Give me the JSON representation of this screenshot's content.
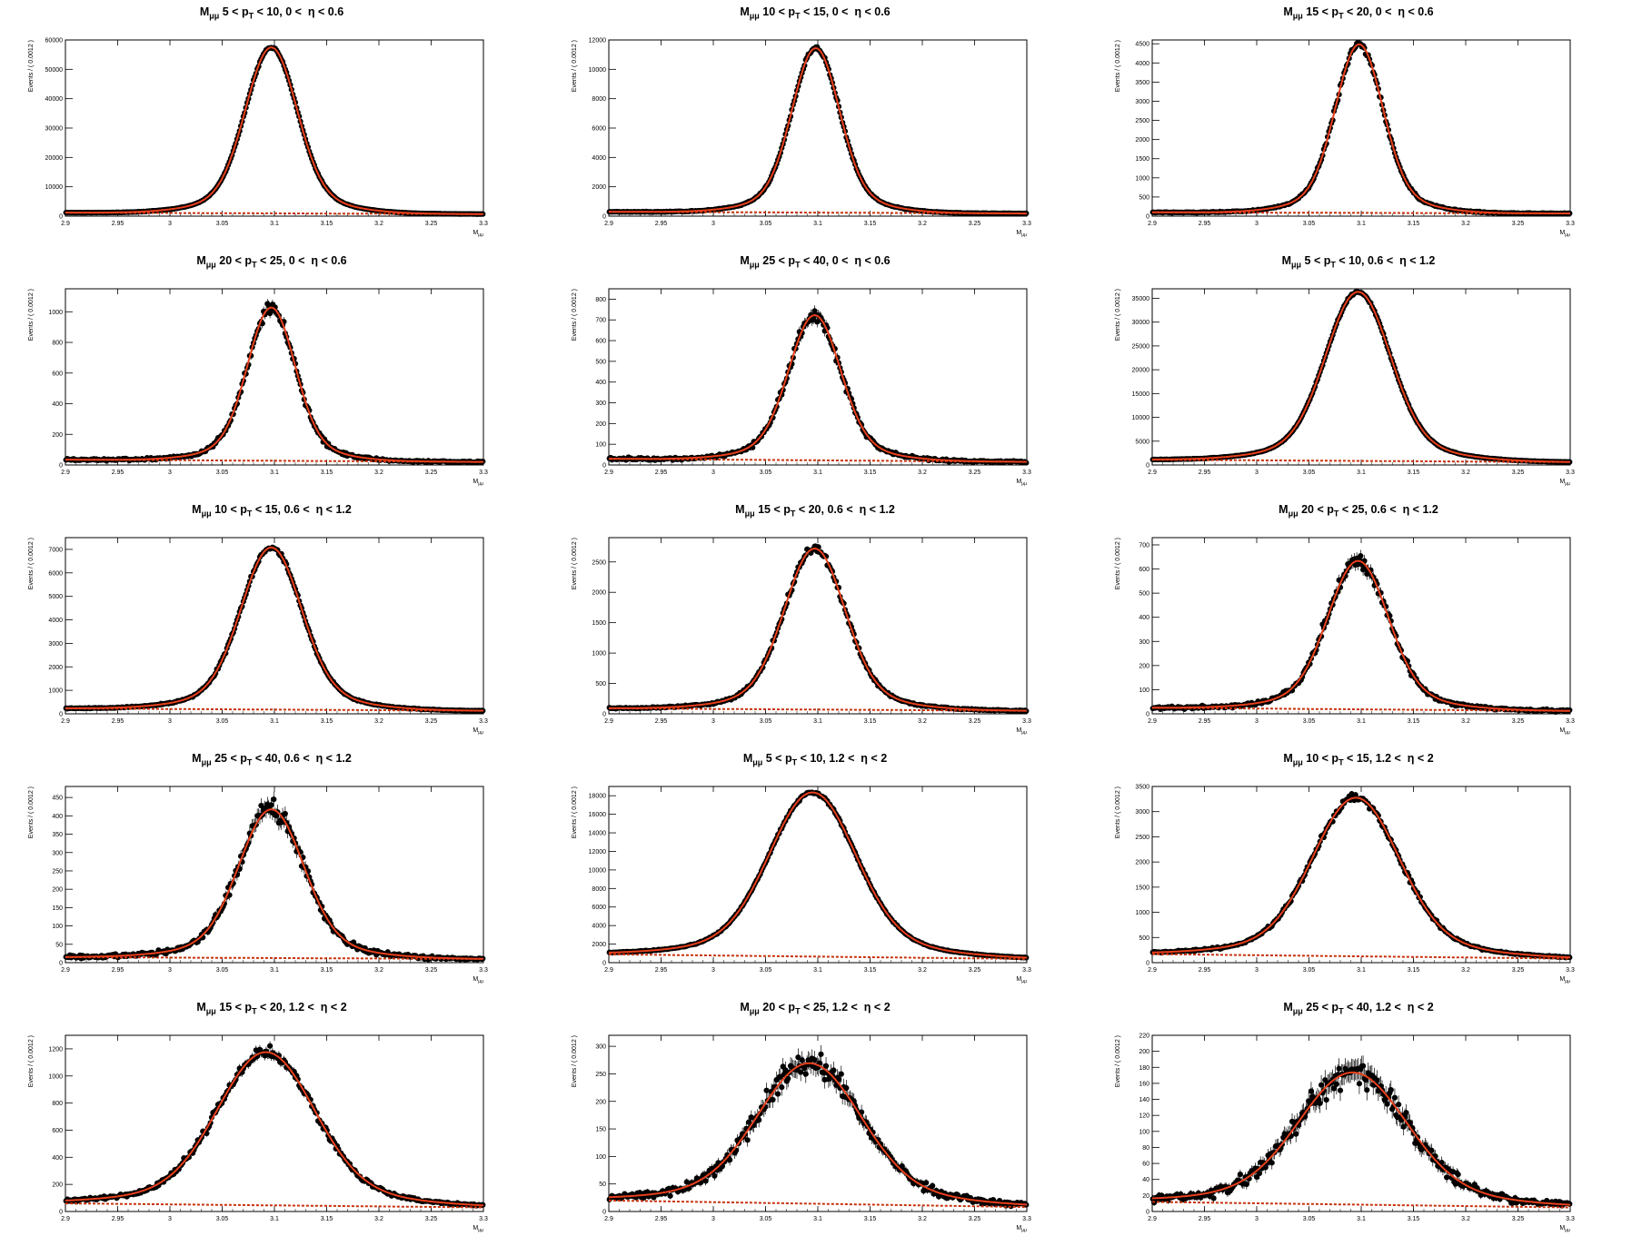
{
  "figure": {
    "colors": {
      "fit": "#e8401c",
      "background_fit": "#c8300c",
      "points": "#000000",
      "frame": "#000000"
    },
    "fit_line_style": "solid",
    "background_line_style": "dashed"
  },
  "chart_data": [
    {
      "type": "scatter",
      "title_parts": [
        "5",
        "10",
        "0",
        "0.6"
      ],
      "ylabel": "Events / ( 0.0012 )",
      "xlabel": "M",
      "xlim": [
        2.9,
        3.3
      ],
      "ylim": [
        0,
        60000
      ],
      "xticks": [
        "2.9",
        "2.95",
        "3",
        "3.05",
        "3.1",
        "3.15",
        "3.2",
        "3.25",
        "3.3"
      ],
      "yticks": [
        "0",
        "10000",
        "20000",
        "30000",
        "40000",
        "50000",
        "60000"
      ],
      "fit": {
        "peak": 56500,
        "mean": 3.097,
        "sigma": 0.024,
        "background_start": 1200,
        "background_end": 700
      },
      "series": [
        {
          "name": "data",
          "markers": "filled-circle"
        },
        {
          "name": "fit",
          "style": "solid"
        },
        {
          "name": "background",
          "style": "dashed"
        }
      ]
    },
    {
      "type": "scatter",
      "title_parts": [
        "10",
        "15",
        "0",
        "0.6"
      ],
      "ylabel": "Events / ( 0.0012 )",
      "xlabel": "M",
      "xlim": [
        2.9,
        3.3
      ],
      "ylim": [
        0,
        12000
      ],
      "xticks": [
        "2.9",
        "2.95",
        "3",
        "3.05",
        "3.1",
        "3.15",
        "3.2",
        "3.25",
        "3.3"
      ],
      "yticks": [
        "0",
        "2000",
        "4000",
        "6000",
        "8000",
        "10000",
        "12000"
      ],
      "fit": {
        "peak": 11200,
        "mean": 3.098,
        "sigma": 0.022,
        "background_start": 300,
        "background_end": 180
      },
      "series": [
        {
          "name": "data",
          "markers": "filled-circle"
        },
        {
          "name": "fit",
          "style": "solid"
        },
        {
          "name": "background",
          "style": "dashed"
        }
      ]
    },
    {
      "type": "scatter",
      "title_parts": [
        "15",
        "20",
        "0",
        "0.6"
      ],
      "ylabel": "Events / ( 0.0012 )",
      "xlabel": "M",
      "xlim": [
        2.9,
        3.3
      ],
      "ylim": [
        0,
        4600
      ],
      "xticks": [
        "2.9",
        "2.95",
        "3",
        "3.05",
        "3.1",
        "3.15",
        "3.2",
        "3.25",
        "3.3"
      ],
      "yticks": [
        "0",
        "500",
        "1000",
        "1500",
        "2000",
        "2500",
        "3000",
        "3500",
        "4000",
        "4500"
      ],
      "fit": {
        "peak": 4400,
        "mean": 3.098,
        "sigma": 0.022,
        "background_start": 100,
        "background_end": 70
      },
      "series": [
        {
          "name": "data",
          "markers": "filled-circle"
        },
        {
          "name": "fit",
          "style": "solid"
        },
        {
          "name": "background",
          "style": "dashed"
        }
      ]
    },
    {
      "type": "scatter",
      "title_parts": [
        "20",
        "25",
        "0",
        "0.6"
      ],
      "ylabel": "Events / ( 0.0012 )",
      "xlabel": "M",
      "xlim": [
        2.9,
        3.3
      ],
      "ylim": [
        0,
        1150
      ],
      "xticks": [
        "2.9",
        "2.95",
        "3",
        "3.05",
        "3.1",
        "3.15",
        "3.2",
        "3.25",
        "3.3"
      ],
      "yticks": [
        "0",
        "200",
        "400",
        "600",
        "800",
        "1000"
      ],
      "fit": {
        "peak": 1000,
        "mean": 3.097,
        "sigma": 0.022,
        "background_start": 35,
        "background_end": 20
      },
      "series": [
        {
          "name": "data",
          "markers": "filled-circle"
        },
        {
          "name": "fit",
          "style": "solid"
        },
        {
          "name": "background",
          "style": "dashed"
        }
      ]
    },
    {
      "type": "scatter",
      "title_parts": [
        "25",
        "40",
        "0",
        "0.6"
      ],
      "ylabel": "Events / ( 0.0012 )",
      "xlabel": "M",
      "xlim": [
        2.9,
        3.3
      ],
      "ylim": [
        0,
        850
      ],
      "xticks": [
        "2.9",
        "2.95",
        "3",
        "3.05",
        "3.1",
        "3.15",
        "3.2",
        "3.25",
        "3.3"
      ],
      "yticks": [
        "0",
        "100",
        "200",
        "300",
        "400",
        "500",
        "600",
        "700",
        "800"
      ],
      "fit": {
        "peak": 700,
        "mean": 3.097,
        "sigma": 0.024,
        "background_start": 30,
        "background_end": 15
      },
      "series": [
        {
          "name": "data",
          "markers": "filled-circle"
        },
        {
          "name": "fit",
          "style": "solid"
        },
        {
          "name": "background",
          "style": "dashed"
        }
      ]
    },
    {
      "type": "scatter",
      "title_parts": [
        "5",
        "10",
        "0.6",
        "1.2"
      ],
      "ylabel": "Events / ( 0.0012 )",
      "xlabel": "M",
      "xlim": [
        2.9,
        3.3
      ],
      "ylim": [
        0,
        37000
      ],
      "xticks": [
        "2.9",
        "2.95",
        "3",
        "3.05",
        "3.1",
        "3.15",
        "3.2",
        "3.25",
        "3.3"
      ],
      "yticks": [
        "0",
        "5000",
        "10000",
        "15000",
        "20000",
        "25000",
        "30000",
        "35000"
      ],
      "fit": {
        "peak": 35500,
        "mean": 3.097,
        "sigma": 0.03,
        "background_start": 1100,
        "background_end": 600
      },
      "series": [
        {
          "name": "data",
          "markers": "filled-circle"
        },
        {
          "name": "fit",
          "style": "solid"
        },
        {
          "name": "background",
          "style": "dashed"
        }
      ]
    },
    {
      "type": "scatter",
      "title_parts": [
        "10",
        "15",
        "0.6",
        "1.2"
      ],
      "ylabel": "Events / ( 0.0012 )",
      "xlabel": "M",
      "xlim": [
        2.9,
        3.3
      ],
      "ylim": [
        0,
        7500
      ],
      "xticks": [
        "2.9",
        "2.95",
        "3",
        "3.05",
        "3.1",
        "3.15",
        "3.2",
        "3.25",
        "3.3"
      ],
      "yticks": [
        "0",
        "1000",
        "2000",
        "3000",
        "4000",
        "5000",
        "6000",
        "7000"
      ],
      "fit": {
        "peak": 6900,
        "mean": 3.097,
        "sigma": 0.028,
        "background_start": 230,
        "background_end": 130
      },
      "series": [
        {
          "name": "data",
          "markers": "filled-circle"
        },
        {
          "name": "fit",
          "style": "solid"
        },
        {
          "name": "background",
          "style": "dashed"
        }
      ]
    },
    {
      "type": "scatter",
      "title_parts": [
        "15",
        "20",
        "0.6",
        "1.2"
      ],
      "ylabel": "Events / ( 0.0012 )",
      "xlabel": "M",
      "xlim": [
        2.9,
        3.3
      ],
      "ylim": [
        0,
        2900
      ],
      "xticks": [
        "2.9",
        "2.95",
        "3",
        "3.05",
        "3.1",
        "3.15",
        "3.2",
        "3.25",
        "3.3"
      ],
      "yticks": [
        "0",
        "500",
        "1000",
        "1500",
        "2000",
        "2500"
      ],
      "fit": {
        "peak": 2650,
        "mean": 3.097,
        "sigma": 0.028,
        "background_start": 90,
        "background_end": 50
      },
      "series": [
        {
          "name": "data",
          "markers": "filled-circle"
        },
        {
          "name": "fit",
          "style": "solid"
        },
        {
          "name": "background",
          "style": "dashed"
        }
      ]
    },
    {
      "type": "scatter",
      "title_parts": [
        "20",
        "25",
        "0.6",
        "1.2"
      ],
      "ylabel": "Events / ( 0.0012 )",
      "xlabel": "M",
      "xlim": [
        2.9,
        3.3
      ],
      "ylim": [
        0,
        730
      ],
      "xticks": [
        "2.9",
        "2.95",
        "3",
        "3.05",
        "3.1",
        "3.15",
        "3.2",
        "3.25",
        "3.3"
      ],
      "yticks": [
        "0",
        "100",
        "200",
        "300",
        "400",
        "500",
        "600",
        "700"
      ],
      "fit": {
        "peak": 615,
        "mean": 3.097,
        "sigma": 0.028,
        "background_start": 25,
        "background_end": 12
      },
      "series": [
        {
          "name": "data",
          "markers": "filled-circle"
        },
        {
          "name": "fit",
          "style": "solid"
        },
        {
          "name": "background",
          "style": "dashed"
        }
      ]
    },
    {
      "type": "scatter",
      "title_parts": [
        "25",
        "40",
        "0.6",
        "1.2"
      ],
      "ylabel": "Events / ( 0.0012 )",
      "xlabel": "M",
      "xlim": [
        2.9,
        3.3
      ],
      "ylim": [
        0,
        480
      ],
      "xticks": [
        "2.9",
        "2.95",
        "3",
        "3.05",
        "3.1",
        "3.15",
        "3.2",
        "3.25",
        "3.3"
      ],
      "yticks": [
        "0",
        "50",
        "100",
        "150",
        "200",
        "250",
        "300",
        "350",
        "400",
        "450"
      ],
      "fit": {
        "peak": 405,
        "mean": 3.097,
        "sigma": 0.03,
        "background_start": 15,
        "background_end": 10
      },
      "series": [
        {
          "name": "data",
          "markers": "filled-circle"
        },
        {
          "name": "fit",
          "style": "solid"
        },
        {
          "name": "background",
          "style": "dashed"
        }
      ]
    },
    {
      "type": "scatter",
      "title_parts": [
        "5",
        "10",
        "1.2",
        "2"
      ],
      "ylabel": "Events / ( 0.0012 )",
      "xlabel": "M",
      "xlim": [
        2.9,
        3.3
      ],
      "ylim": [
        0,
        19000
      ],
      "xticks": [
        "2.9",
        "2.95",
        "3",
        "3.05",
        "3.1",
        "3.15",
        "3.2",
        "3.25",
        "3.3"
      ],
      "yticks": [
        "0",
        "2000",
        "4000",
        "6000",
        "8000",
        "10000",
        "12000",
        "14000",
        "16000",
        "18000"
      ],
      "fit": {
        "peak": 17700,
        "mean": 3.095,
        "sigma": 0.04,
        "background_start": 900,
        "background_end": 400
      },
      "series": [
        {
          "name": "data",
          "markers": "filled-circle"
        },
        {
          "name": "fit",
          "style": "solid"
        },
        {
          "name": "background",
          "style": "dashed"
        }
      ]
    },
    {
      "type": "scatter",
      "title_parts": [
        "10",
        "15",
        "1.2",
        "2"
      ],
      "ylabel": "Events / ( 0.0012 )",
      "xlabel": "M",
      "xlim": [
        2.9,
        3.3
      ],
      "ylim": [
        0,
        3500
      ],
      "xticks": [
        "2.9",
        "2.95",
        "3",
        "3.05",
        "3.1",
        "3.15",
        "3.2",
        "3.25",
        "3.3"
      ],
      "yticks": [
        "0",
        "500",
        "1000",
        "1500",
        "2000",
        "2500",
        "3000",
        "3500"
      ],
      "fit": {
        "peak": 3150,
        "mean": 3.095,
        "sigma": 0.04,
        "background_start": 170,
        "background_end": 80
      },
      "series": [
        {
          "name": "data",
          "markers": "filled-circle"
        },
        {
          "name": "fit",
          "style": "solid"
        },
        {
          "name": "background",
          "style": "dashed"
        }
      ]
    },
    {
      "type": "scatter",
      "title_parts": [
        "15",
        "20",
        "1.2",
        "2"
      ],
      "ylabel": "Events / ( 0.0012 )",
      "xlabel": "M",
      "xlim": [
        2.9,
        3.3
      ],
      "ylim": [
        0,
        1300
      ],
      "xticks": [
        "2.9",
        "2.95",
        "3",
        "3.05",
        "3.1",
        "3.15",
        "3.2",
        "3.25",
        "3.3"
      ],
      "yticks": [
        "0",
        "200",
        "400",
        "600",
        "800",
        "1000",
        "1200"
      ],
      "fit": {
        "peak": 1130,
        "mean": 3.092,
        "sigma": 0.045,
        "background_start": 60,
        "background_end": 30
      },
      "series": [
        {
          "name": "data",
          "markers": "filled-circle"
        },
        {
          "name": "fit",
          "style": "solid"
        },
        {
          "name": "background",
          "style": "dashed"
        }
      ]
    },
    {
      "type": "scatter",
      "title_parts": [
        "20",
        "25",
        "1.2",
        "2"
      ],
      "ylabel": "Events / ( 0.0012 )",
      "xlabel": "M",
      "xlim": [
        2.9,
        3.3
      ],
      "ylim": [
        0,
        320
      ],
      "xticks": [
        "2.9",
        "2.95",
        "3",
        "3.05",
        "3.1",
        "3.15",
        "3.2",
        "3.25",
        "3.3"
      ],
      "yticks": [
        "0",
        "50",
        "100",
        "150",
        "200",
        "250",
        "300"
      ],
      "fit": {
        "peak": 255,
        "mean": 3.092,
        "sigma": 0.048,
        "background_start": 20,
        "background_end": 8
      },
      "series": [
        {
          "name": "data",
          "markers": "filled-circle"
        },
        {
          "name": "fit",
          "style": "solid"
        },
        {
          "name": "background",
          "style": "dashed"
        }
      ]
    },
    {
      "type": "scatter",
      "title_parts": [
        "25",
        "40",
        "1.2",
        "2"
      ],
      "ylabel": "Events / ( 0.0012 )",
      "xlabel": "M",
      "xlim": [
        2.9,
        3.3
      ],
      "ylim": [
        0,
        220
      ],
      "xticks": [
        "2.9",
        "2.95",
        "3",
        "3.05",
        "3.1",
        "3.15",
        "3.2",
        "3.25",
        "3.3"
      ],
      "yticks": [
        "0",
        "20",
        "40",
        "60",
        "80",
        "100",
        "120",
        "140",
        "160",
        "180",
        "200",
        "220"
      ],
      "fit": {
        "peak": 165,
        "mean": 3.092,
        "sigma": 0.05,
        "background_start": 12,
        "background_end": 5
      },
      "series": [
        {
          "name": "data",
          "markers": "filled-circle"
        },
        {
          "name": "fit",
          "style": "solid"
        },
        {
          "name": "background",
          "style": "dashed"
        }
      ]
    }
  ]
}
